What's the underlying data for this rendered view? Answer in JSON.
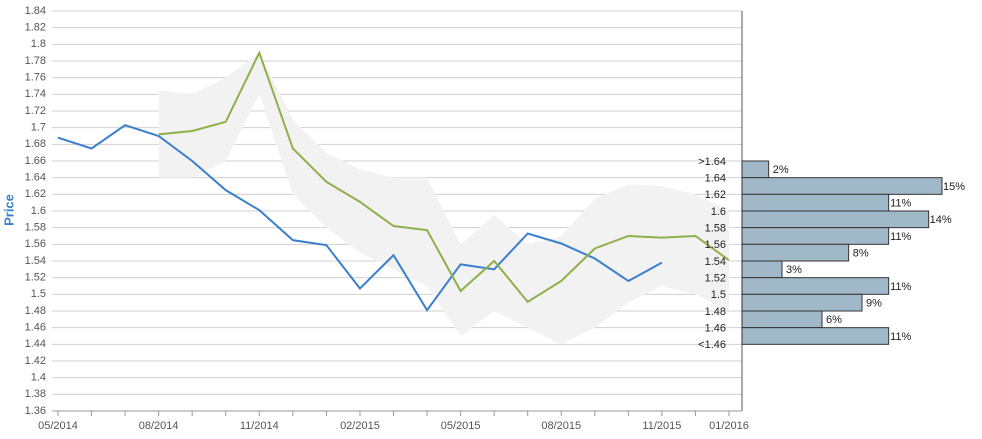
{
  "chart_data": [
    {
      "type": "line",
      "y_label": "Price",
      "categories": [
        "05/2014",
        null,
        null,
        "08/2014",
        null,
        null,
        "11/2014",
        null,
        null,
        "02/2015",
        null,
        null,
        "05/2015",
        null,
        null,
        "08/2015",
        null,
        null,
        "11/2015",
        null,
        "01/2016"
      ],
      "series": [
        {
          "color": "#3a7fcf",
          "values": [
            1.688,
            1.675,
            1.703,
            1.69,
            1.66,
            1.625,
            1.601,
            1.565,
            1.559,
            1.507,
            1.547,
            1.481,
            1.536,
            1.53,
            1.573,
            1.561,
            1.543,
            1.516,
            1.538,
            null,
            null
          ]
        },
        {
          "color": "#8db04a",
          "values": [
            null,
            null,
            null,
            1.692,
            1.696,
            1.707,
            1.79,
            1.675,
            1.635,
            1.611,
            1.582,
            1.577,
            1.504,
            1.54,
            1.491,
            1.516,
            1.555,
            1.57,
            1.568,
            1.57,
            1.541
          ]
        }
      ],
      "band": {
        "color": "#f2f2f2",
        "upper": [
          null,
          null,
          null,
          1.745,
          1.74,
          1.76,
          1.79,
          1.71,
          1.67,
          1.65,
          1.64,
          1.64,
          1.56,
          1.595,
          1.56,
          1.57,
          1.615,
          1.632,
          1.63,
          1.62,
          1.6
        ],
        "lower": [
          null,
          null,
          null,
          1.64,
          1.64,
          1.66,
          1.74,
          1.62,
          1.58,
          1.55,
          1.53,
          1.51,
          1.45,
          1.48,
          1.46,
          1.44,
          1.46,
          1.49,
          1.51,
          1.5,
          1.48
        ]
      },
      "ylim": [
        1.36,
        1.84
      ],
      "yticks": [
        1.36,
        1.38,
        1.4,
        1.42,
        1.44,
        1.46,
        1.48,
        1.5,
        1.52,
        1.54,
        1.56,
        1.58,
        1.6,
        1.62,
        1.64,
        1.66,
        1.68,
        1.7,
        1.72,
        1.74,
        1.76,
        1.78,
        1.8,
        1.82,
        1.84
      ],
      "grid": true
    },
    {
      "type": "histogram",
      "orientation": "horizontal",
      "color": "#a0b8c8",
      "bins": [
        {
          "value": 1.66,
          "label": ">1.64"
        },
        1.64,
        1.62,
        1.6,
        1.58,
        1.56,
        1.54,
        1.52,
        1.5,
        1.48,
        1.46,
        {
          "value": 1.44,
          "label": "<1.46"
        }
      ],
      "values": [
        2,
        15,
        11,
        14,
        11,
        8,
        3,
        11,
        9,
        6,
        11
      ],
      "value_labels": [
        "2%",
        "15%",
        "11%",
        "14%",
        "11%",
        "8%",
        "3%",
        "11%",
        "9%",
        "6%",
        "11%"
      ]
    }
  ]
}
